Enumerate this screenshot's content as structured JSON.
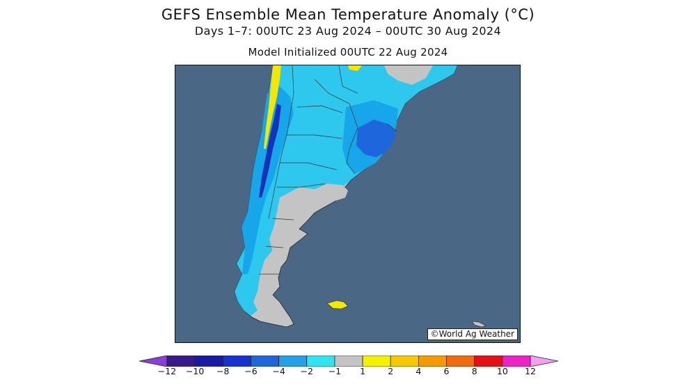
{
  "title": "GEFS Ensemble Mean Temperature Anomaly (°C)",
  "subtitle": "Days 1–7: 00UTC 23 Aug 2024 – 00UTC 30 Aug 2024",
  "init": "Model Initialized 00UTC 22 Aug 2024",
  "credit": "©World Ag Weather",
  "colors": {
    "ocean": "#4a6785",
    "anomaly_neg2_neg1": "#2ec8ef",
    "anomaly_neg4_neg2": "#17a6ea",
    "anomaly_neg6_neg4": "#1e66dc",
    "anomaly_neg8_neg6": "#1433b8",
    "near_zero": "#c4c4c4",
    "warm_1_2": "#f5e800"
  },
  "colorbar": {
    "bins": [
      {
        "color": "#8a3fd6"
      },
      {
        "color": "#3a1a8a"
      },
      {
        "color": "#1a1aa8"
      },
      {
        "color": "#1433d2"
      },
      {
        "color": "#1e66dc"
      },
      {
        "color": "#22a0ea"
      },
      {
        "color": "#2ee6f2"
      },
      {
        "color": "#c4c4c4"
      },
      {
        "color": "#f5f000"
      },
      {
        "color": "#f6c800"
      },
      {
        "color": "#f59a00"
      },
      {
        "color": "#f06a10"
      },
      {
        "color": "#e81010"
      },
      {
        "color": "#f020c8"
      },
      {
        "color": "#f4a0f0"
      }
    ],
    "labels": [
      "−12",
      "−10",
      "−8",
      "−6",
      "−4",
      "−2",
      "−1",
      "1",
      "2",
      "4",
      "6",
      "8",
      "10",
      "12"
    ]
  }
}
